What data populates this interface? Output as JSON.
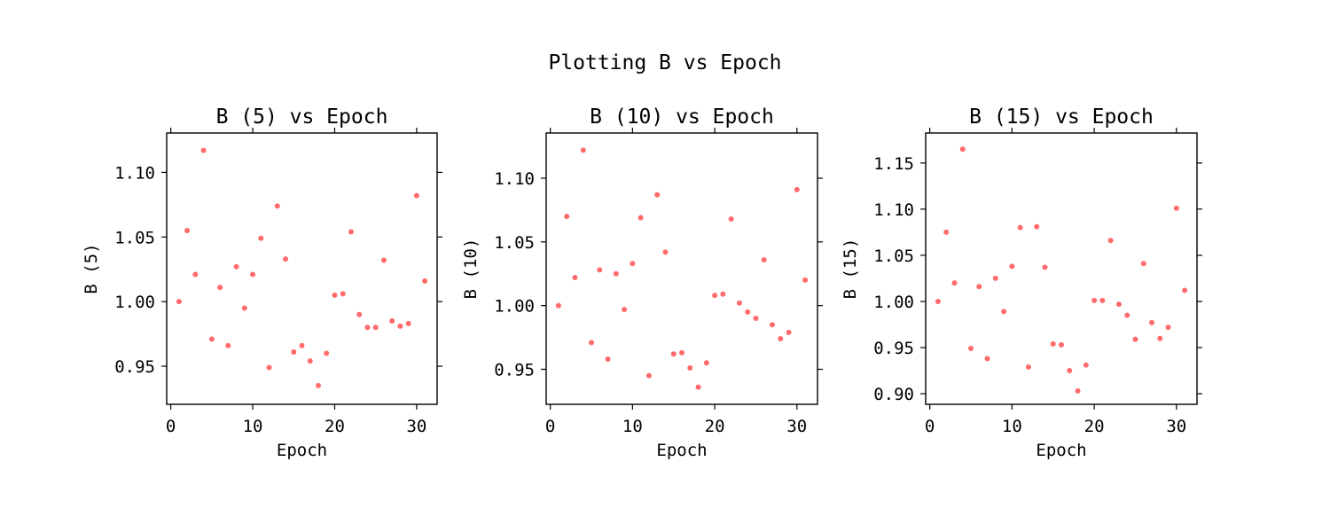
{
  "figure": {
    "title": "Plotting B vs Epoch"
  },
  "chart_data": [
    {
      "type": "scatter",
      "title": "B (5) vs Epoch",
      "xlabel": "Epoch",
      "ylabel": "B (5)",
      "xlim": [
        -0.5,
        32.5
      ],
      "ylim": [
        0.9205,
        1.1305
      ],
      "xticks": [
        0,
        10,
        20,
        30
      ],
      "xtick_labels": [
        "0",
        "10",
        "20",
        "30"
      ],
      "yticks": [
        0.95,
        1.0,
        1.05,
        1.1
      ],
      "ytick_labels": [
        "0.95",
        "1.00",
        "1.05",
        "1.10"
      ],
      "grid": false,
      "color": "#ff6b6b",
      "x": [
        1,
        2,
        3,
        4,
        5,
        6,
        7,
        8,
        9,
        10,
        11,
        12,
        13,
        14,
        15,
        16,
        17,
        18,
        19,
        20,
        21,
        22,
        23,
        24,
        25,
        26,
        27,
        28,
        29,
        30,
        31
      ],
      "y": [
        1.0,
        1.055,
        1.021,
        1.117,
        0.971,
        1.011,
        0.966,
        1.027,
        0.995,
        1.021,
        1.049,
        0.949,
        1.074,
        1.033,
        0.961,
        0.966,
        0.954,
        0.935,
        0.96,
        1.005,
        1.006,
        1.054,
        0.99,
        0.98,
        0.98,
        1.032,
        0.985,
        0.981,
        0.983,
        1.082,
        1.016
      ]
    },
    {
      "type": "scatter",
      "title": "B (10) vs Epoch",
      "xlabel": "Epoch",
      "ylabel": "B (10)",
      "xlim": [
        -0.5,
        32.5
      ],
      "ylim": [
        0.9225,
        1.1355
      ],
      "xticks": [
        0,
        10,
        20,
        30
      ],
      "xtick_labels": [
        "0",
        "10",
        "20",
        "30"
      ],
      "yticks": [
        0.95,
        1.0,
        1.05,
        1.1
      ],
      "ytick_labels": [
        "0.95",
        "1.00",
        "1.05",
        "1.10"
      ],
      "grid": false,
      "color": "#ff6b6b",
      "x": [
        1,
        2,
        3,
        4,
        5,
        6,
        7,
        8,
        9,
        10,
        11,
        12,
        13,
        14,
        15,
        16,
        17,
        18,
        19,
        20,
        21,
        22,
        23,
        24,
        25,
        26,
        27,
        28,
        29,
        30,
        31
      ],
      "y": [
        1.0,
        1.07,
        1.022,
        1.122,
        0.971,
        1.028,
        0.958,
        1.025,
        0.997,
        1.033,
        1.069,
        0.945,
        1.087,
        1.042,
        0.962,
        0.963,
        0.951,
        0.936,
        0.955,
        1.008,
        1.009,
        1.068,
        1.002,
        0.995,
        0.99,
        1.036,
        0.985,
        0.974,
        0.979,
        1.091,
        1.02
      ]
    },
    {
      "type": "scatter",
      "title": "B (15) vs Epoch",
      "xlabel": "Epoch",
      "ylabel": "B (15)",
      "xlim": [
        -0.5,
        32.5
      ],
      "ylim": [
        0.8885,
        1.1825
      ],
      "xticks": [
        0,
        10,
        20,
        30
      ],
      "xtick_labels": [
        "0",
        "10",
        "20",
        "30"
      ],
      "yticks": [
        0.9,
        0.95,
        1.0,
        1.05,
        1.1,
        1.15
      ],
      "ytick_labels": [
        "0.90",
        "0.95",
        "1.00",
        "1.05",
        "1.10",
        "1.15"
      ],
      "grid": false,
      "color": "#ff6b6b",
      "x": [
        1,
        2,
        3,
        4,
        5,
        6,
        7,
        8,
        9,
        10,
        11,
        12,
        13,
        14,
        15,
        16,
        17,
        18,
        19,
        20,
        21,
        22,
        23,
        24,
        25,
        26,
        27,
        28,
        29,
        30,
        31
      ],
      "y": [
        1.0,
        1.075,
        1.02,
        1.165,
        0.949,
        1.016,
        0.938,
        1.025,
        0.989,
        1.038,
        1.08,
        0.929,
        1.081,
        1.037,
        0.954,
        0.953,
        0.925,
        0.903,
        0.931,
        1.001,
        1.001,
        1.066,
        0.997,
        0.985,
        0.959,
        1.041,
        0.977,
        0.96,
        0.972,
        1.101,
        1.012
      ]
    }
  ]
}
